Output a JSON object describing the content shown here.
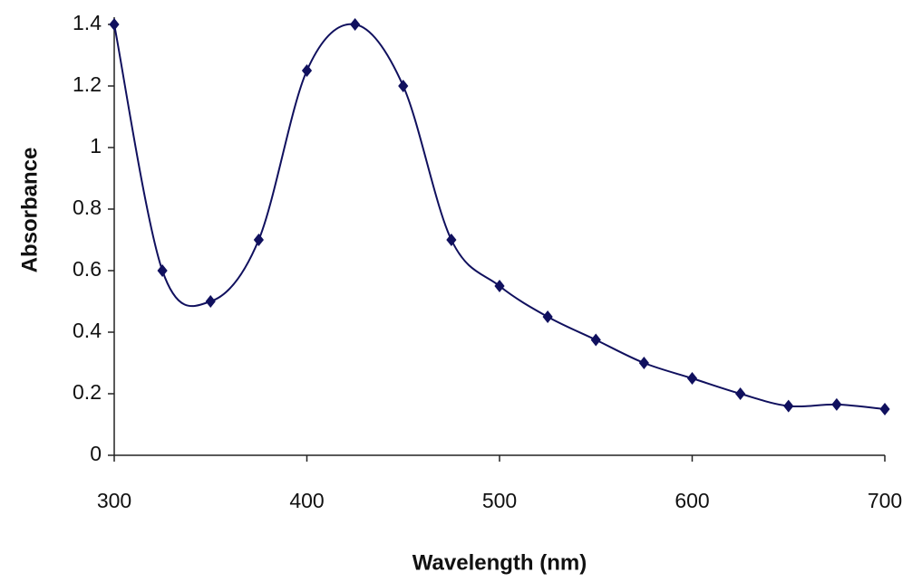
{
  "chart_data": {
    "type": "line",
    "x_label": "Wavelength (nm)",
    "y_label": "Absorbance",
    "x": [
      300,
      325,
      350,
      375,
      400,
      425,
      450,
      475,
      500,
      525,
      550,
      575,
      600,
      625,
      650,
      675,
      700
    ],
    "series": [
      {
        "color": "#10105e",
        "values": [
          1.4,
          0.6,
          0.5,
          0.7,
          1.25,
          1.4,
          1.2,
          0.7,
          0.55,
          0.45,
          0.375,
          0.3,
          0.25,
          0.2,
          0.16,
          0.165,
          0.15
        ]
      }
    ],
    "xlim": [
      300,
      700
    ],
    "xticks": [
      300,
      400,
      500,
      600,
      700
    ],
    "ylim": [
      0,
      1.4
    ],
    "yticks": [
      0,
      0.2,
      0.4,
      0.6,
      0.8,
      1,
      1.2,
      1.4
    ],
    "grid": false
  }
}
